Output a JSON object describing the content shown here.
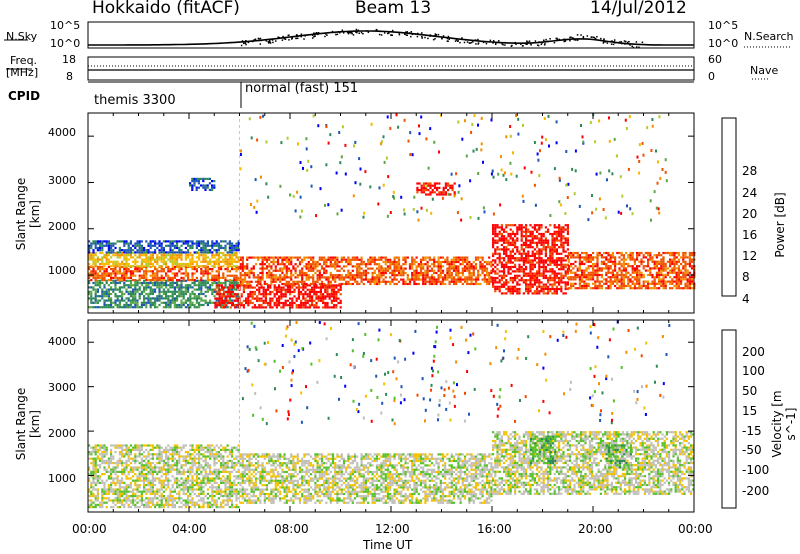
{
  "header": {
    "station": "Hokkaido (fitACF)",
    "beam": "Beam 13",
    "date": "14/Jul/2012"
  },
  "noise_panel": {
    "left_label": "N.Sky",
    "right_label": "N.Search",
    "left_ticks": [
      "10^5",
      "10^0"
    ],
    "right_ticks": [
      "10^5",
      "10^0"
    ]
  },
  "freq_panel": {
    "left_label": "Freq.",
    "left_unit": "[MHz]",
    "right_label": "Nave",
    "left_ticks": [
      "18",
      "8"
    ],
    "right_ticks": [
      "60",
      "0"
    ]
  },
  "cpid": {
    "label": "CPID",
    "segments": [
      {
        "name": "themis 3300",
        "start_hour": 0
      },
      {
        "name": "normal (fast) 151",
        "start_hour": 6
      }
    ]
  },
  "chart_data": [
    {
      "type": "heatmap",
      "title": "Power",
      "ylabel": "Slant Range [km]",
      "ylim": [
        180,
        4500
      ],
      "yticks": [
        "1000",
        "2000",
        "3000",
        "4000"
      ],
      "xlim": [
        0,
        24
      ],
      "colorbar": {
        "label": "Power [dB]",
        "ticks": [
          "28",
          "24",
          "20",
          "16",
          "12",
          "8",
          "4"
        ],
        "colors": [
          "#0000ff",
          "#1e56b4",
          "#2e8a55",
          "#5aa845",
          "#b0cc2c",
          "#f7b800",
          "#f58f00",
          "#f05200",
          "#ff0000"
        ]
      },
      "regions": [
        {
          "t0": 0,
          "t1": 6,
          "r0": 300,
          "r1": 900,
          "level": 2
        },
        {
          "t0": 0,
          "t1": 6,
          "r0": 900,
          "r1": 1200,
          "level": 7
        },
        {
          "t0": 0,
          "t1": 6,
          "r0": 1200,
          "r1": 1500,
          "level": 5
        },
        {
          "t0": 0,
          "t1": 6,
          "r0": 1500,
          "r1": 1750,
          "level": 1
        },
        {
          "t0": 4,
          "t1": 5,
          "r0": 2850,
          "r1": 3100,
          "level": 1
        },
        {
          "t0": 5,
          "t1": 10,
          "r0": 300,
          "r1": 800,
          "level": 8
        },
        {
          "t0": 6,
          "t1": 16,
          "r0": 800,
          "r1": 1400,
          "level": 7
        },
        {
          "t0": 13,
          "t1": 14.5,
          "r0": 2750,
          "r1": 3000,
          "level": 8
        },
        {
          "t0": 16,
          "t1": 19,
          "r0": 600,
          "r1": 2100,
          "level": 8
        },
        {
          "t0": 19,
          "t1": 24,
          "r0": 700,
          "r1": 1500,
          "level": 7
        }
      ]
    },
    {
      "type": "heatmap",
      "title": "Velocity",
      "ylabel": "Slant Range [km]",
      "xlabel": "Time UT",
      "ylim": [
        180,
        4500
      ],
      "yticks": [
        "1000",
        "2000",
        "3000",
        "4000"
      ],
      "xticks": [
        "00:00",
        "04:00",
        "08:00",
        "12:00",
        "16:00",
        "20:00",
        "00:00"
      ],
      "xlim": [
        0,
        24
      ],
      "colorbar": {
        "label": "Velocity [m s^-1]",
        "ticks": [
          "200",
          "100",
          "50",
          "15",
          "-15",
          "-50",
          "-100",
          "-200"
        ],
        "colors": [
          "#ff0000",
          "#f24b00",
          "#f58f00",
          "#f2c200",
          "#c0bfb9",
          "#55c128",
          "#2e8a55",
          "#1e56b4",
          "#0000ff"
        ]
      },
      "regions": [
        {
          "t0": 0,
          "t1": 6,
          "r0": 300,
          "r1": 1700,
          "level": 4
        },
        {
          "t0": 6,
          "t1": 16,
          "r0": 400,
          "r1": 1500,
          "level": 4
        },
        {
          "t0": 16,
          "t1": 24,
          "r0": 600,
          "r1": 2000,
          "level": 4
        },
        {
          "t0": 17.5,
          "t1": 18.5,
          "r0": 1300,
          "r1": 1900,
          "level": 5
        },
        {
          "t0": 20.5,
          "t1": 21.5,
          "r0": 1200,
          "r1": 1700,
          "level": 5
        }
      ]
    }
  ]
}
